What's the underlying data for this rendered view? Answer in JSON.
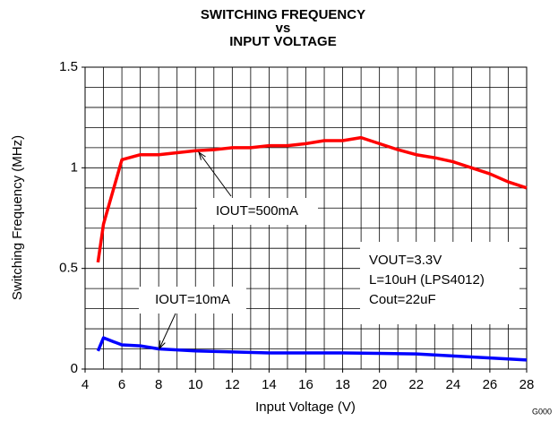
{
  "chart_data": {
    "type": "line",
    "title": [
      "SWITCHING FREQUENCY",
      "vs",
      "INPUT VOLTAGE"
    ],
    "x_label": "Input Voltage (V)",
    "y_label": "Switching Frequency (MHz)",
    "xlim": [
      4,
      28
    ],
    "xticks": [
      4,
      6,
      8,
      10,
      12,
      14,
      16,
      18,
      20,
      22,
      24,
      26,
      28
    ],
    "ylim": [
      0,
      1.5
    ],
    "yticks": [
      0,
      0.5,
      1,
      1.5
    ],
    "grid": true,
    "minor_grid": {
      "x": 1,
      "y": 0.1
    },
    "series": [
      {
        "name": "IOUT=500mA",
        "color": "#ff0000",
        "x": [
          4.7,
          5,
          6,
          7,
          8,
          9,
          10,
          11,
          12,
          13,
          14,
          15,
          16,
          17,
          18,
          19,
          20,
          21,
          22,
          23,
          24,
          25,
          26,
          27,
          28
        ],
        "values": [
          0.53,
          0.72,
          1.04,
          1.065,
          1.065,
          1.075,
          1.085,
          1.09,
          1.1,
          1.1,
          1.11,
          1.11,
          1.12,
          1.135,
          1.135,
          1.15,
          1.12,
          1.09,
          1.065,
          1.05,
          1.03,
          1.0,
          0.97,
          0.93,
          0.9
        ]
      },
      {
        "name": "IOUT=10mA",
        "color": "#0000ff",
        "x": [
          4.7,
          5,
          6,
          7,
          8,
          10,
          12,
          14,
          16,
          18,
          20,
          22,
          24,
          26,
          28
        ],
        "values": [
          0.09,
          0.155,
          0.12,
          0.115,
          0.1,
          0.09,
          0.085,
          0.08,
          0.08,
          0.08,
          0.078,
          0.075,
          0.065,
          0.055,
          0.045
        ]
      }
    ],
    "annotations": [
      "VOUT=3.3V",
      "L=10uH (LPS4012)",
      "Cout=22uF"
    ],
    "footnote": "G000"
  }
}
